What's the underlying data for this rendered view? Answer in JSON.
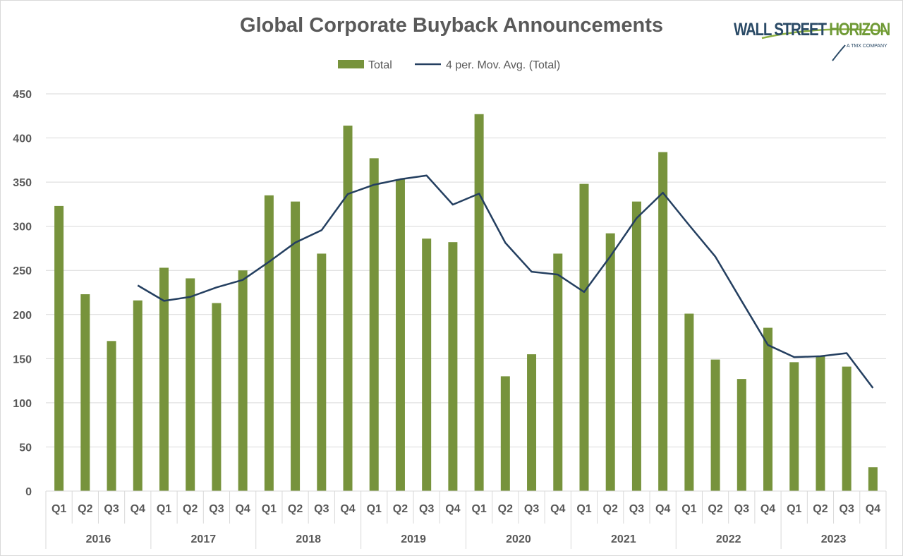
{
  "chart_data": {
    "type": "bar",
    "title": "Global Corporate Buyback Announcements",
    "legend": [
      "Total",
      "4 per. Mov. Avg. (Total)"
    ],
    "legend_position": "top",
    "years": [
      "2016",
      "2017",
      "2018",
      "2019",
      "2020",
      "2021",
      "2022",
      "2023"
    ],
    "quarters": [
      "Q1",
      "Q2",
      "Q3",
      "Q4"
    ],
    "series": [
      {
        "name": "Total",
        "type": "bar",
        "values": [
          323,
          223,
          170,
          216,
          253,
          241,
          213,
          250,
          335,
          328,
          269,
          414,
          377,
          353,
          286,
          282,
          427,
          130,
          155,
          269,
          348,
          292,
          328,
          384,
          201,
          149,
          127,
          185,
          146,
          153,
          141,
          27
        ]
      },
      {
        "name": "4 per. Mov. Avg. (Total)",
        "type": "line",
        "period": 4
      }
    ],
    "ylim": [
      0,
      450
    ],
    "yticks": [
      0,
      50,
      100,
      150,
      200,
      250,
      300,
      350,
      400,
      450
    ],
    "grid": true,
    "colors": {
      "bar": "#77933c",
      "line": "#243f60",
      "grid": "#d9d9d9",
      "text": "#595959"
    }
  },
  "logo": {
    "name": "WALL STREET HORIZON",
    "sub": "A TMX COMPANY"
  }
}
